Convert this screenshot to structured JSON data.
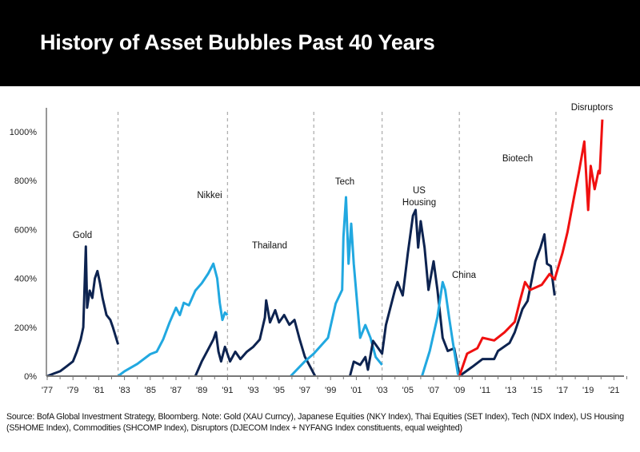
{
  "header": {
    "title": "History of Asset Bubbles Past 40 Years"
  },
  "source_note": "Source: BofA Global Investment Strategy, Bloomberg. Note: Gold (XAU Curncy), Japanese Equities (NKY Index), Thai Equities (SET Index), Tech (NDX Index), US Housing (S5HOME Index), Commodities (SHCOMP Index), Disruptors (DJECOM Index + NYFANG Index constituents, equal weighted)",
  "chart_data": {
    "type": "line",
    "title": "History of Asset Bubbles Past 40 Years",
    "xlabel": "",
    "ylabel": "",
    "xlim": [
      1977,
      2022
    ],
    "ylim": [
      0,
      1100
    ],
    "yticks": [
      0,
      200,
      400,
      600,
      800,
      1000
    ],
    "ytick_labels": [
      "0%",
      "200%",
      "400%",
      "600%",
      "800%",
      "1000%"
    ],
    "xtick_labels": [
      "'77",
      "'79",
      "'81",
      "'83",
      "'85",
      "'87",
      "'89",
      "'91",
      "'93",
      "'95",
      "'97",
      "'99",
      "'01",
      "'03",
      "'05",
      "'07",
      "'09",
      "'11",
      "'13",
      "'15",
      "'17",
      "'19",
      "'21"
    ],
    "xtick_years": [
      1977,
      1979,
      1981,
      1983,
      1985,
      1987,
      1989,
      1991,
      1993,
      1995,
      1997,
      1999,
      2001,
      2003,
      2005,
      2007,
      2009,
      2011,
      2013,
      2015,
      2017,
      2019,
      2021
    ],
    "period_dividers": [
      1982.5,
      1991,
      1997.7,
      2003,
      2009,
      2016.5
    ],
    "colors": {
      "navy": "#0d2350",
      "lightblue": "#21a8e0",
      "red": "#f01010",
      "axis": "#777777",
      "divider": "#b0b0b0"
    },
    "series": [
      {
        "name": "Gold",
        "color": "#0d2350",
        "points": [
          [
            1977,
            0
          ],
          [
            1977.5,
            10
          ],
          [
            1978,
            20
          ],
          [
            1978.5,
            40
          ],
          [
            1979,
            60
          ],
          [
            1979.3,
            100
          ],
          [
            1979.6,
            150
          ],
          [
            1979.8,
            200
          ],
          [
            1980,
            530
          ],
          [
            1980.1,
            280
          ],
          [
            1980.3,
            350
          ],
          [
            1980.5,
            320
          ],
          [
            1980.7,
            400
          ],
          [
            1980.9,
            430
          ],
          [
            1981.1,
            380
          ],
          [
            1981.3,
            320
          ],
          [
            1981.6,
            250
          ],
          [
            1981.9,
            230
          ],
          [
            1982.1,
            200
          ],
          [
            1982.5,
            130
          ]
        ]
      },
      {
        "name": "Nikkei",
        "color": "#21a8e0",
        "points": [
          [
            1982.5,
            0
          ],
          [
            1983,
            20
          ],
          [
            1984,
            50
          ],
          [
            1985,
            90
          ],
          [
            1985.5,
            100
          ],
          [
            1986,
            150
          ],
          [
            1986.5,
            220
          ],
          [
            1987,
            280
          ],
          [
            1987.3,
            250
          ],
          [
            1987.6,
            300
          ],
          [
            1988,
            290
          ],
          [
            1988.5,
            350
          ],
          [
            1989,
            380
          ],
          [
            1989.5,
            420
          ],
          [
            1989.9,
            460
          ],
          [
            1990.2,
            400
          ],
          [
            1990.4,
            300
          ],
          [
            1990.6,
            230
          ],
          [
            1990.8,
            260
          ],
          [
            1991,
            250
          ]
        ]
      },
      {
        "name": "Thailand",
        "color": "#0d2350",
        "points": [
          [
            1988.5,
            0
          ],
          [
            1989,
            60
          ],
          [
            1989.5,
            110
          ],
          [
            1989.9,
            150
          ],
          [
            1990.1,
            180
          ],
          [
            1990.3,
            100
          ],
          [
            1990.5,
            60
          ],
          [
            1990.8,
            120
          ],
          [
            1991.2,
            60
          ],
          [
            1991.6,
            100
          ],
          [
            1992,
            70
          ],
          [
            1992.5,
            100
          ],
          [
            1993,
            120
          ],
          [
            1993.5,
            150
          ],
          [
            1993.9,
            240
          ],
          [
            1994,
            310
          ],
          [
            1994.3,
            220
          ],
          [
            1994.7,
            270
          ],
          [
            1995,
            220
          ],
          [
            1995.4,
            250
          ],
          [
            1995.8,
            210
          ],
          [
            1996.2,
            230
          ],
          [
            1996.6,
            150
          ],
          [
            1997,
            80
          ],
          [
            1997.5,
            30
          ],
          [
            1997.8,
            0
          ]
        ]
      },
      {
        "name": "Tech",
        "color": "#21a8e0",
        "points": [
          [
            1995.9,
            0
          ],
          [
            1997,
            60
          ],
          [
            1997.7,
            92
          ],
          [
            1998.8,
            157
          ],
          [
            1999.4,
            297
          ],
          [
            1999.9,
            353
          ],
          [
            2000,
            570
          ],
          [
            2000.2,
            732
          ],
          [
            2000.4,
            460
          ],
          [
            2000.6,
            624
          ],
          [
            2000.8,
            460
          ],
          [
            2001.3,
            157
          ],
          [
            2001.7,
            209
          ],
          [
            2002.1,
            157
          ],
          [
            2002.5,
            78
          ],
          [
            2003,
            46
          ]
        ]
      },
      {
        "name": "US Housing",
        "color": "#0d2350",
        "points": [
          [
            2000.5,
            0
          ],
          [
            2000.8,
            59
          ],
          [
            2001.3,
            46
          ],
          [
            2001.7,
            78
          ],
          [
            2001.9,
            26
          ],
          [
            2002.3,
            144
          ],
          [
            2003,
            92
          ],
          [
            2003.3,
            209
          ],
          [
            2004,
            353
          ],
          [
            2004.2,
            385
          ],
          [
            2004.6,
            330
          ],
          [
            2005,
            503
          ],
          [
            2005.4,
            657
          ],
          [
            2005.6,
            680
          ],
          [
            2005.8,
            526
          ],
          [
            2006,
            634
          ],
          [
            2006.3,
            526
          ],
          [
            2006.6,
            353
          ],
          [
            2007,
            470
          ],
          [
            2007.3,
            353
          ],
          [
            2007.7,
            157
          ],
          [
            2008.1,
            103
          ],
          [
            2008.6,
            114
          ],
          [
            2009,
            5
          ]
        ]
      },
      {
        "name": "China",
        "color": "#21a8e0",
        "points": [
          [
            2006.1,
            0
          ],
          [
            2006.7,
            103
          ],
          [
            2007.3,
            242
          ],
          [
            2007.7,
            385
          ],
          [
            2007.9,
            353
          ],
          [
            2008.2,
            242
          ],
          [
            2008.5,
            136
          ],
          [
            2008.9,
            5
          ]
        ]
      },
      {
        "name": "Biotech",
        "color": "#0d2350",
        "points": [
          [
            2009,
            0
          ],
          [
            2010,
            38
          ],
          [
            2010.8,
            70
          ],
          [
            2011.7,
            70
          ],
          [
            2012,
            103
          ],
          [
            2012.9,
            136
          ],
          [
            2013.3,
            179
          ],
          [
            2013.9,
            275
          ],
          [
            2014.3,
            308
          ],
          [
            2014.9,
            470
          ],
          [
            2015.3,
            526
          ],
          [
            2015.6,
            580
          ],
          [
            2015.8,
            460
          ],
          [
            2016.1,
            450
          ],
          [
            2016.4,
            330
          ]
        ]
      },
      {
        "name": "Disruptors",
        "color": "#f01010",
        "points": [
          [
            2009,
            0
          ],
          [
            2009.6,
            92
          ],
          [
            2010.4,
            114
          ],
          [
            2010.8,
            157
          ],
          [
            2011.7,
            146
          ],
          [
            2012.5,
            179
          ],
          [
            2013.3,
            222
          ],
          [
            2013.7,
            308
          ],
          [
            2014.1,
            385
          ],
          [
            2014.5,
            353
          ],
          [
            2015.4,
            374
          ],
          [
            2016,
            418
          ],
          [
            2016.4,
            396
          ],
          [
            2017,
            503
          ],
          [
            2017.4,
            590
          ],
          [
            2017.9,
            732
          ],
          [
            2018.3,
            840
          ],
          [
            2018.7,
            960
          ],
          [
            2019,
            680
          ],
          [
            2019.2,
            860
          ],
          [
            2019.5,
            765
          ],
          [
            2019.8,
            840
          ],
          [
            2019.9,
            830
          ],
          [
            2020.1,
            1050
          ]
        ]
      }
    ]
  }
}
